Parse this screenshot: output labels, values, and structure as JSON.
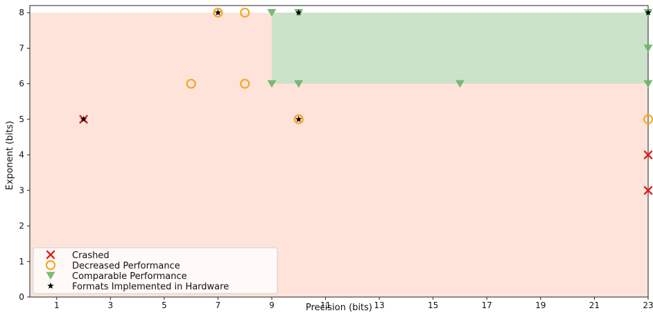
{
  "chart_data": {
    "type": "scatter",
    "title": "",
    "xlabel": "Precision (bits)",
    "ylabel": "Exponent (bits)",
    "xlim": [
      0,
      23
    ],
    "ylim": [
      0,
      8.2
    ],
    "xticks": [
      1,
      3,
      5,
      7,
      9,
      11,
      13,
      15,
      17,
      19,
      21,
      23
    ],
    "yticks": [
      0,
      1,
      2,
      3,
      4,
      5,
      6,
      7,
      8
    ],
    "grid": false,
    "legend_position": "bottom-left",
    "regions": [
      {
        "name": "low-region",
        "x": [
          0,
          23
        ],
        "y": [
          0,
          8
        ],
        "color": "#fde3da"
      },
      {
        "name": "comparable-region",
        "x": [
          9,
          23
        ],
        "y": [
          6,
          8
        ],
        "color": "#cbe3c8"
      }
    ],
    "series": [
      {
        "name": "Crashed",
        "marker": "x",
        "color": "#e02020",
        "points": [
          [
            2,
            5
          ],
          [
            23,
            4
          ],
          [
            23,
            3
          ]
        ]
      },
      {
        "name": "Decreased Performance",
        "marker": "circle",
        "color": "#f5a623",
        "points": [
          [
            7,
            8
          ],
          [
            8,
            8
          ],
          [
            6,
            6
          ],
          [
            8,
            6
          ],
          [
            10,
            5
          ],
          [
            23,
            5
          ]
        ]
      },
      {
        "name": "Comparable Performance",
        "marker": "triangle-down",
        "color": "#6db36a",
        "points": [
          [
            9,
            8
          ],
          [
            10,
            8
          ],
          [
            23,
            8
          ],
          [
            23,
            7
          ],
          [
            9,
            6
          ],
          [
            10,
            6
          ],
          [
            16,
            6
          ],
          [
            23,
            6
          ]
        ]
      },
      {
        "name": "Formats Implemented in Hardware",
        "marker": "star",
        "color": "#000000",
        "points": [
          [
            2,
            5
          ],
          [
            7,
            8
          ],
          [
            10,
            8
          ],
          [
            10,
            5
          ],
          [
            23,
            8
          ]
        ]
      }
    ]
  }
}
